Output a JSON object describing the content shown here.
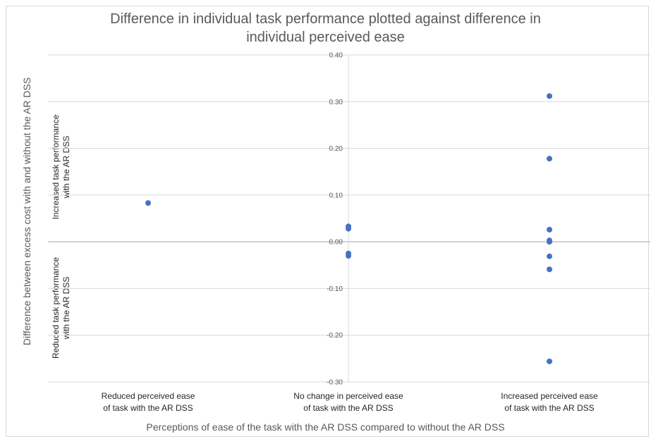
{
  "chart_data": {
    "type": "scatter",
    "title_line1": "Difference in individual task performance plotted against difference in",
    "title_line2": "individual perceived ease",
    "ylabel": "Difference between excess cost with and without the AR DSS",
    "xlabel": "Perceptions of ease of the task with the AR DSS compared to without the AR DSS",
    "upper_label_line1": "Increased task performance",
    "upper_label_line2": "with the AR DSS",
    "lower_label_line1": "Reduced task performance",
    "lower_label_line2": "with the AR DSS",
    "categories": [
      {
        "line1": "Reduced perceived ease",
        "line2": "of task with the AR DSS"
      },
      {
        "line1": "No change in perceived ease",
        "line2": "of task with the AR DSS"
      },
      {
        "line1": "Increased perceived ease",
        "line2": "of task with the AR DSS"
      }
    ],
    "ylim": [
      -0.3,
      0.4
    ],
    "yticks": [
      "0.40",
      "0.30",
      "0.20",
      "0.10",
      "0.00",
      "-0.10",
      "-0.20",
      "-0.30"
    ],
    "ytick_values": [
      0.4,
      0.3,
      0.2,
      0.1,
      0.0,
      -0.1,
      -0.2,
      -0.3
    ],
    "grid": true,
    "marker_color": "#4472c4",
    "points": [
      {
        "category": 0,
        "y": 0.083
      },
      {
        "category": 1,
        "y": 0.033
      },
      {
        "category": 1,
        "y": 0.028
      },
      {
        "category": 1,
        "y": -0.025
      },
      {
        "category": 1,
        "y": -0.03
      },
      {
        "category": 2,
        "y": 0.312
      },
      {
        "category": 2,
        "y": 0.178
      },
      {
        "category": 2,
        "y": 0.026
      },
      {
        "category": 2,
        "y": 0.003
      },
      {
        "category": 2,
        "y": 0.0
      },
      {
        "category": 2,
        "y": -0.031
      },
      {
        "category": 2,
        "y": -0.059
      },
      {
        "category": 2,
        "y": -0.256
      }
    ]
  }
}
